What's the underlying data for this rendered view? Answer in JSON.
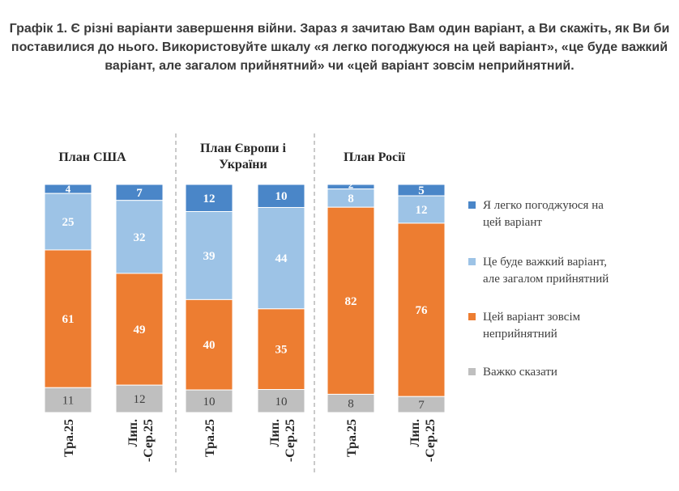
{
  "title": "Графік 1. Є різні варіанти завершення війни. Зараз я зачитаю Вам один варіант, а Ви скажіть, як Ви би поставилися до нього. Використовуйте шкалу «я легко погоджуюся на цей варіант», «це буде важкий варіант, але загалом прийнятний» чи «цей варіант зовсім неприйнятний.",
  "chart_data": {
    "type": "bar",
    "stacked": true,
    "normalized_percent": true,
    "groups": [
      {
        "label": "План США",
        "categories": [
          "Тра.25",
          "Лип.-Сер.25"
        ]
      },
      {
        "label": "План Європи і України",
        "categories": [
          "Тра.25",
          "Лип.-Сер.25"
        ]
      },
      {
        "label": "План Росії",
        "categories": [
          "Тра.25",
          "Лип.-Сер.25"
        ]
      }
    ],
    "category_labels": [
      "Тра.25",
      "Лип.-Сер.25",
      "Тра.25",
      "Лип.-Сер.25",
      "Тра.25",
      "Лип.-Сер.25"
    ],
    "series": [
      {
        "name": "Я легко погоджуюся на цей варіант",
        "color": "#4a86c8",
        "values": [
          4,
          7,
          12,
          10,
          2,
          5
        ]
      },
      {
        "name": "Це буде важкий варіант, але загалом прийнятний",
        "color": "#9dc3e6",
        "values": [
          25,
          32,
          39,
          44,
          8,
          12
        ]
      },
      {
        "name": "Цей варіант зовсім неприйнятний",
        "color": "#ed7d31",
        "values": [
          61,
          49,
          40,
          35,
          82,
          76
        ]
      },
      {
        "name": "Важко сказати",
        "color": "#bfbfbf",
        "values": [
          11,
          12,
          10,
          10,
          8,
          7
        ]
      }
    ],
    "legend_position": "right",
    "grid": false,
    "ylim": [
      0,
      100
    ]
  }
}
